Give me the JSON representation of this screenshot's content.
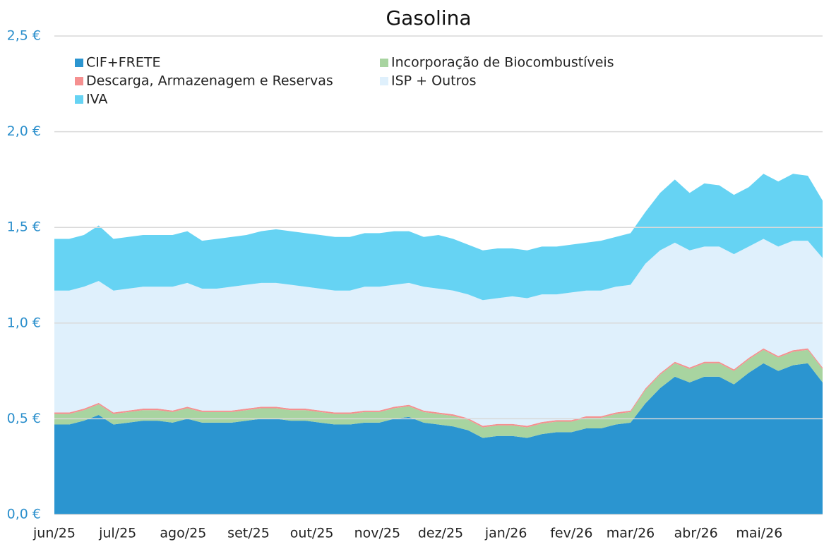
{
  "chart_data": {
    "type": "stacked_area",
    "title": "Gasolina",
    "x": [
      0,
      7,
      14,
      21,
      28,
      35,
      42,
      49,
      56,
      63,
      70,
      77,
      84,
      91,
      98,
      105,
      112,
      119,
      126,
      133,
      140,
      147,
      154,
      161,
      168,
      175,
      182,
      189,
      196,
      203,
      210,
      217,
      224,
      231,
      238,
      245,
      252,
      259,
      266,
      273,
      280,
      287,
      294,
      301,
      308,
      315,
      322,
      329,
      336,
      343,
      350,
      357,
      364
    ],
    "xlim": [
      0,
      364
    ],
    "xticks": [
      {
        "value": 0,
        "label": "jun/25"
      },
      {
        "value": 30,
        "label": "jul/25"
      },
      {
        "value": 61,
        "label": "ago/25"
      },
      {
        "value": 92,
        "label": "set/25"
      },
      {
        "value": 122,
        "label": "out/25"
      },
      {
        "value": 153,
        "label": "nov/25"
      },
      {
        "value": 183,
        "label": "dez/25"
      },
      {
        "value": 214,
        "label": "jan/26"
      },
      {
        "value": 245,
        "label": "fev/26"
      },
      {
        "value": 273,
        "label": "mar/26"
      },
      {
        "value": 304,
        "label": "abr/26"
      },
      {
        "value": 334,
        "label": "mai/26"
      }
    ],
    "ylim": [
      0,
      2.5
    ],
    "yticks": [
      {
        "value": 0,
        "label": "0,0 €"
      },
      {
        "value": 0.5,
        "label": "0,5 €"
      },
      {
        "value": 1,
        "label": "1,0 €"
      },
      {
        "value": 1.5,
        "label": "1,5 €"
      },
      {
        "value": 2,
        "label": "2,0 €"
      },
      {
        "value": 2.5,
        "label": "2,5 €"
      }
    ],
    "grid": true,
    "legend": "top-left",
    "series": [
      {
        "name": "CIF+FRETE",
        "color": "#2b95d0",
        "values": [
          0.47,
          0.47,
          0.49,
          0.52,
          0.47,
          0.48,
          0.49,
          0.49,
          0.48,
          0.5,
          0.48,
          0.48,
          0.48,
          0.49,
          0.5,
          0.5,
          0.49,
          0.49,
          0.48,
          0.47,
          0.47,
          0.48,
          0.48,
          0.5,
          0.51,
          0.48,
          0.47,
          0.46,
          0.44,
          0.4,
          0.41,
          0.41,
          0.4,
          0.42,
          0.43,
          0.43,
          0.45,
          0.45,
          0.47,
          0.48,
          0.58,
          0.66,
          0.72,
          0.69,
          0.72,
          0.72,
          0.68,
          0.74,
          0.79,
          0.75,
          0.78,
          0.79,
          0.69
        ]
      },
      {
        "name": "Incorporação de Biocombustíveis",
        "color": "#a8d4a0",
        "values": [
          0.055,
          0.055,
          0.055,
          0.055,
          0.055,
          0.055,
          0.055,
          0.055,
          0.055,
          0.055,
          0.055,
          0.055,
          0.055,
          0.055,
          0.055,
          0.055,
          0.055,
          0.055,
          0.055,
          0.055,
          0.055,
          0.055,
          0.055,
          0.055,
          0.055,
          0.055,
          0.055,
          0.055,
          0.055,
          0.055,
          0.055,
          0.055,
          0.055,
          0.055,
          0.055,
          0.055,
          0.055,
          0.055,
          0.055,
          0.055,
          0.07,
          0.07,
          0.07,
          0.07,
          0.07,
          0.07,
          0.07,
          0.07,
          0.07,
          0.07,
          0.07,
          0.07,
          0.07
        ]
      },
      {
        "name": "Descarga, Armazenagem e Reservas",
        "color": "#f59090",
        "values": [
          0.008,
          0.008,
          0.008,
          0.008,
          0.008,
          0.008,
          0.008,
          0.008,
          0.008,
          0.008,
          0.008,
          0.008,
          0.008,
          0.008,
          0.008,
          0.008,
          0.008,
          0.008,
          0.008,
          0.008,
          0.008,
          0.008,
          0.008,
          0.008,
          0.008,
          0.008,
          0.008,
          0.008,
          0.008,
          0.008,
          0.008,
          0.008,
          0.008,
          0.008,
          0.008,
          0.008,
          0.008,
          0.008,
          0.008,
          0.008,
          0.008,
          0.008,
          0.008,
          0.008,
          0.008,
          0.008,
          0.008,
          0.008,
          0.008,
          0.008,
          0.008,
          0.008,
          0.008
        ]
      },
      {
        "name": "ISP + Outros",
        "color": "#dff0fc",
        "values": [
          0.637,
          0.637,
          0.637,
          0.637,
          0.637,
          0.637,
          0.637,
          0.637,
          0.647,
          0.647,
          0.637,
          0.637,
          0.647,
          0.647,
          0.647,
          0.647,
          0.647,
          0.637,
          0.637,
          0.637,
          0.637,
          0.647,
          0.647,
          0.637,
          0.637,
          0.647,
          0.647,
          0.647,
          0.647,
          0.657,
          0.657,
          0.667,
          0.667,
          0.667,
          0.657,
          0.667,
          0.657,
          0.657,
          0.657,
          0.657,
          0.652,
          0.642,
          0.622,
          0.612,
          0.602,
          0.602,
          0.602,
          0.582,
          0.572,
          0.572,
          0.572,
          0.562,
          0.572
        ]
      },
      {
        "name": "IVA",
        "color": "#66d3f3",
        "values": [
          0.27,
          0.27,
          0.27,
          0.29,
          0.27,
          0.27,
          0.27,
          0.27,
          0.27,
          0.27,
          0.25,
          0.26,
          0.26,
          0.26,
          0.27,
          0.28,
          0.28,
          0.28,
          0.28,
          0.28,
          0.28,
          0.28,
          0.28,
          0.28,
          0.27,
          0.26,
          0.28,
          0.27,
          0.26,
          0.26,
          0.26,
          0.25,
          0.25,
          0.25,
          0.25,
          0.25,
          0.25,
          0.26,
          0.26,
          0.27,
          0.27,
          0.3,
          0.33,
          0.3,
          0.33,
          0.32,
          0.31,
          0.31,
          0.34,
          0.34,
          0.35,
          0.34,
          0.3
        ]
      }
    ]
  }
}
